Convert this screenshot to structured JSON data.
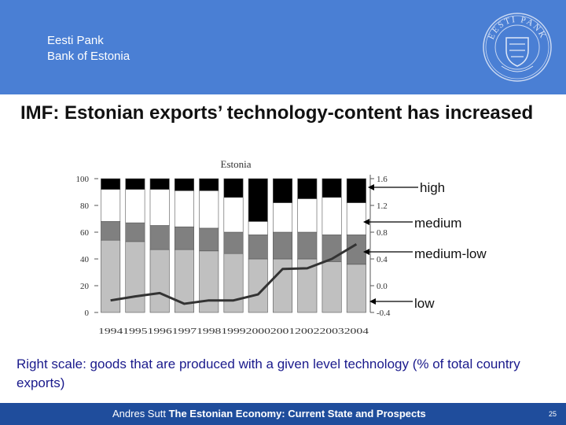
{
  "header": {
    "org_line1": "Eesti Pank",
    "org_line2": "Bank of Estonia",
    "seal_text": "EESTI PANK",
    "bg_color": "#4a7fd4"
  },
  "slide": {
    "title": "IMF: Estonian exports’ technology-content has increased",
    "caption": "Right scale: goods that are produced with a given level technology (% of total country exports)"
  },
  "chart_data": {
    "type": "bar",
    "title": "Estonia",
    "stacked": true,
    "categories": [
      "1994",
      "1995",
      "1996",
      "1997",
      "1998",
      "1999",
      "2000",
      "2001",
      "2002",
      "2003",
      "2004"
    ],
    "left_ticks": [
      "100",
      "80",
      "60",
      "40",
      "20",
      "0"
    ],
    "right_ticks": [
      "1.6",
      "1.2",
      "0.8",
      "0.4",
      "0.0",
      "-0.4"
    ],
    "ylim": [
      0,
      100
    ],
    "y2lim": [
      -0.4,
      1.6
    ],
    "series": [
      {
        "name": "low",
        "color": "#c0c0c0",
        "values": [
          54,
          53,
          47,
          47,
          46,
          44,
          40,
          40,
          40,
          38,
          36
        ]
      },
      {
        "name": "medium-low",
        "color": "#808080",
        "values": [
          14,
          14,
          18,
          17,
          17,
          16,
          18,
          20,
          20,
          20,
          22
        ]
      },
      {
        "name": "medium",
        "color": "#ffffff",
        "values": [
          24,
          25,
          27,
          27,
          28,
          26,
          10,
          22,
          25,
          28,
          24
        ]
      },
      {
        "name": "high",
        "color": "#000000",
        "values": [
          8,
          8,
          8,
          9,
          9,
          14,
          32,
          18,
          15,
          14,
          18
        ]
      }
    ],
    "line": {
      "values": [
        -0.22,
        -0.16,
        -0.11,
        -0.27,
        -0.22,
        -0.22,
        -0.13,
        0.25,
        0.26,
        0.4,
        0.62
      ],
      "color": "#333333"
    },
    "tier_labels": [
      "high",
      "medium",
      "medium-low",
      "low"
    ]
  },
  "footer": {
    "author": "Andres Sutt",
    "title": "The Estonian Economy: Current State and Prospects",
    "page": "25"
  }
}
